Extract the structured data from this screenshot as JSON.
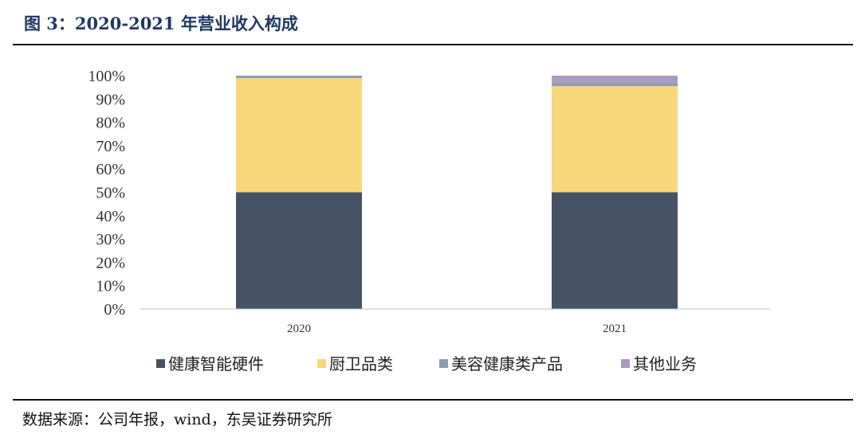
{
  "title": "图 3：2020-2021 年营业收入构成",
  "source": "数据来源：公司年报，wind，东吴证券研究所",
  "chart_data": {
    "type": "bar",
    "stacked": true,
    "categories": [
      "2020",
      "2021"
    ],
    "series": [
      {
        "name": "健康智能硬件",
        "values": [
          50,
          50
        ],
        "color": "#465366"
      },
      {
        "name": "厨卫品类",
        "values": [
          49,
          45.5
        ],
        "color": "#f7d77a"
      },
      {
        "name": "美容健康类产品",
        "values": [
          1,
          1.5
        ],
        "color": "#8d9db3"
      },
      {
        "name": "其他业务",
        "values": [
          0,
          3
        ],
        "color": "#a99bc2"
      }
    ],
    "ylim": [
      0,
      100
    ],
    "yticks": [
      "0%",
      "10%",
      "20%",
      "30%",
      "40%",
      "50%",
      "60%",
      "70%",
      "80%",
      "90%",
      "100%"
    ],
    "legend_position": "bottom",
    "grid": false
  }
}
